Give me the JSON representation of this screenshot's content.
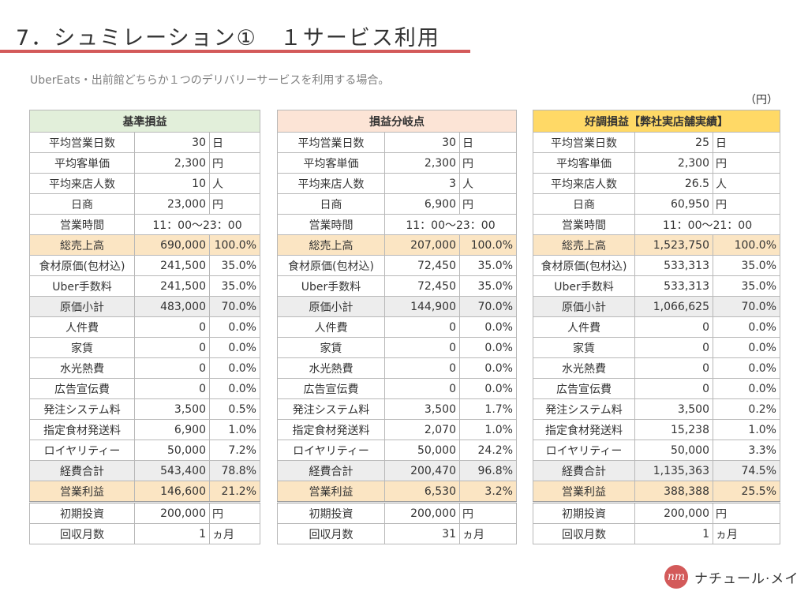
{
  "slide": {
    "title": "7．シュミレーション①　１サービス利用",
    "subtitle": "UberEats・出前館どちらか１つのデリバリーサービスを利用する場合。",
    "unit_label": "（円）"
  },
  "colors": {
    "title_rule": "#d35a5a",
    "header_base": "#e2efda",
    "header_breakeven": "#fce4d6",
    "header_good": "#ffd966",
    "highlight_row": "#fbe5c3",
    "subtotal_row": "#ededed"
  },
  "tables": [
    {
      "title": "基準損益",
      "header_color": "#e2efda",
      "days": {
        "label": "平均営業日数",
        "value": "30",
        "unit": "日"
      },
      "price": {
        "label": "平均客単価",
        "value": "2,300",
        "unit": "円"
      },
      "visitors": {
        "label": "平均来店人数",
        "value": "10",
        "unit": "人"
      },
      "daily": {
        "label": "日商",
        "value": "23,000",
        "unit": "円"
      },
      "hours": {
        "label": "営業時間",
        "value": "11：00～23：00"
      },
      "sales": {
        "label": "総売上高",
        "value": "690,000",
        "pct": "100.0%"
      },
      "food": {
        "label": "食材原価(包材込)",
        "value": "241,500",
        "pct": "35.0%"
      },
      "uber": {
        "label": "Uber手数料",
        "value": "241,500",
        "pct": "35.0%"
      },
      "cost_sub": {
        "label": "原価小計",
        "value": "483,000",
        "pct": "70.0%"
      },
      "labor": {
        "label": "人件費",
        "value": "0",
        "pct": "0.0%"
      },
      "rent": {
        "label": "家賃",
        "value": "0",
        "pct": "0.0%"
      },
      "utilities": {
        "label": "水光熱費",
        "value": "0",
        "pct": "0.0%"
      },
      "ads": {
        "label": "広告宣伝費",
        "value": "0",
        "pct": "0.0%"
      },
      "ordering": {
        "label": "発注システム料",
        "value": "3,500",
        "pct": "0.5%"
      },
      "shipping": {
        "label": "指定食材発送料",
        "value": "6,900",
        "pct": "1.0%"
      },
      "royalty": {
        "label": "ロイヤリティー",
        "value": "50,000",
        "pct": "7.2%"
      },
      "expense_total": {
        "label": "経費合計",
        "value": "543,400",
        "pct": "78.8%"
      },
      "profit": {
        "label": "営業利益",
        "value": "146,600",
        "pct": "21.2%"
      },
      "investment": {
        "label": "初期投資",
        "value": "200,000",
        "unit": "円"
      },
      "payback": {
        "label": "回収月数",
        "value": "1",
        "unit": "ヵ月"
      }
    },
    {
      "title": "損益分岐点",
      "header_color": "#fce4d6",
      "days": {
        "label": "平均営業日数",
        "value": "30",
        "unit": "日"
      },
      "price": {
        "label": "平均客単価",
        "value": "2,300",
        "unit": "円"
      },
      "visitors": {
        "label": "平均来店人数",
        "value": "3",
        "unit": "人"
      },
      "daily": {
        "label": "日商",
        "value": "6,900",
        "unit": "円"
      },
      "hours": {
        "label": "営業時間",
        "value": "11：00～23：00"
      },
      "sales": {
        "label": "総売上高",
        "value": "207,000",
        "pct": "100.0%"
      },
      "food": {
        "label": "食材原価(包材込)",
        "value": "72,450",
        "pct": "35.0%"
      },
      "uber": {
        "label": "Uber手数料",
        "value": "72,450",
        "pct": "35.0%"
      },
      "cost_sub": {
        "label": "原価小計",
        "value": "144,900",
        "pct": "70.0%"
      },
      "labor": {
        "label": "人件費",
        "value": "0",
        "pct": "0.0%"
      },
      "rent": {
        "label": "家賃",
        "value": "0",
        "pct": "0.0%"
      },
      "utilities": {
        "label": "水光熱費",
        "value": "0",
        "pct": "0.0%"
      },
      "ads": {
        "label": "広告宣伝費",
        "value": "0",
        "pct": "0.0%"
      },
      "ordering": {
        "label": "発注システム料",
        "value": "3,500",
        "pct": "1.7%"
      },
      "shipping": {
        "label": "指定食材発送料",
        "value": "2,070",
        "pct": "1.0%"
      },
      "royalty": {
        "label": "ロイヤリティー",
        "value": "50,000",
        "pct": "24.2%"
      },
      "expense_total": {
        "label": "経費合計",
        "value": "200,470",
        "pct": "96.8%"
      },
      "profit": {
        "label": "営業利益",
        "value": "6,530",
        "pct": "3.2%"
      },
      "investment": {
        "label": "初期投資",
        "value": "200,000",
        "unit": "円"
      },
      "payback": {
        "label": "回収月数",
        "value": "31",
        "unit": "ヵ月"
      }
    },
    {
      "title": "好調損益【弊社実店舗実績】",
      "header_color": "#ffd966",
      "days": {
        "label": "平均営業日数",
        "value": "25",
        "unit": "日"
      },
      "price": {
        "label": "平均客単価",
        "value": "2,300",
        "unit": "円"
      },
      "visitors": {
        "label": "平均来店人数",
        "value": "26.5",
        "unit": "人"
      },
      "daily": {
        "label": "日商",
        "value": "60,950",
        "unit": "円"
      },
      "hours": {
        "label": "営業時間",
        "value": "11：00～21：00"
      },
      "sales": {
        "label": "総売上高",
        "value": "1,523,750",
        "pct": "100.0%"
      },
      "food": {
        "label": "食材原価(包材込)",
        "value": "533,313",
        "pct": "35.0%"
      },
      "uber": {
        "label": "Uber手数料",
        "value": "533,313",
        "pct": "35.0%"
      },
      "cost_sub": {
        "label": "原価小計",
        "value": "1,066,625",
        "pct": "70.0%"
      },
      "labor": {
        "label": "人件費",
        "value": "0",
        "pct": "0.0%"
      },
      "rent": {
        "label": "家賃",
        "value": "0",
        "pct": "0.0%"
      },
      "utilities": {
        "label": "水光熱費",
        "value": "0",
        "pct": "0.0%"
      },
      "ads": {
        "label": "広告宣伝費",
        "value": "0",
        "pct": "0.0%"
      },
      "ordering": {
        "label": "発注システム料",
        "value": "3,500",
        "pct": "0.2%"
      },
      "shipping": {
        "label": "指定食材発送料",
        "value": "15,238",
        "pct": "1.0%"
      },
      "royalty": {
        "label": "ロイヤリティー",
        "value": "50,000",
        "pct": "3.3%"
      },
      "expense_total": {
        "label": "経費合計",
        "value": "1,135,363",
        "pct": "74.5%"
      },
      "profit": {
        "label": "営業利益",
        "value": "388,388",
        "pct": "25.5%"
      },
      "investment": {
        "label": "初期投資",
        "value": "200,000",
        "unit": "円"
      },
      "payback": {
        "label": "回収月数",
        "value": "1",
        "unit": "ヵ月"
      }
    }
  ],
  "footer": {
    "logo_mark": "nm",
    "brand_name": "ナチュール·メイ"
  }
}
